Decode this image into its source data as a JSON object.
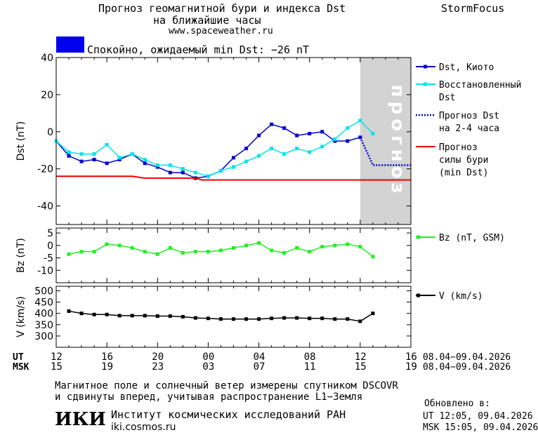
{
  "header": {
    "title_line1": "Прогноз геомагнитной бури и индекса Dst",
    "title_line2": "на ближайшие часы",
    "url": "www.spaceweather.ru",
    "brand": "StormFocus"
  },
  "status": {
    "text": "Спокойно, ожидаемый min Dst: −26 nT",
    "color": "#0000ee"
  },
  "forecast_zone_label": "прогноз",
  "time_axis": {
    "ut_label": "UT",
    "msk_label": "MSK",
    "ut_ticks": [
      "12",
      "16",
      "20",
      "00",
      "04",
      "08",
      "12",
      "16"
    ],
    "msk_ticks": [
      "15",
      "19",
      "23",
      "03",
      "07",
      "11",
      "15",
      "19"
    ],
    "ut_range": "08.04−09.04.2026",
    "msk_range": "08.04−09.04.2026"
  },
  "footer": {
    "note_line1": "Магнитное поле и солнечный ветер измерены спутником DSCOVR",
    "note_line2": "и сдвинуты вперед, учитывая распространение L1−Земля",
    "institute": "Институт космических исследований РАН",
    "institute_url": "iki.cosmos.ru",
    "logo_text": "ИКИ",
    "updated_label": "Обновлено в:",
    "updated_ut": "UT  12:05, 09.04.2026",
    "updated_msk": "MSK 15:05, 09.04.2026"
  },
  "chart_data": [
    {
      "type": "line",
      "ylabel": "Dst (nT)",
      "ylim": [
        -50,
        40
      ],
      "yticks": [
        -40,
        -20,
        0,
        20,
        40
      ],
      "x_unit": "hours since 12 UT 08.04.2026",
      "xlim": [
        0,
        28
      ],
      "forecast_shade_start": 24,
      "series": [
        {
          "name": "Dst, Киото",
          "color": "#0000cc",
          "x": [
            0,
            1,
            2,
            3,
            4,
            5,
            6,
            7,
            8,
            9,
            10,
            11,
            12,
            13,
            14,
            15,
            16,
            17,
            18,
            19,
            20,
            21,
            22,
            23,
            24
          ],
          "values": [
            -5,
            -13,
            -16,
            -15,
            -17,
            -15,
            -12,
            -17,
            -19,
            -22,
            -22,
            -25,
            -24,
            -21,
            -14,
            -9,
            -2,
            4,
            2,
            -2,
            -1,
            0,
            -5,
            -5,
            -3
          ]
        },
        {
          "name": "Восстановленный Dst",
          "color": "#00e5ee",
          "x": [
            0,
            1,
            2,
            3,
            4,
            5,
            6,
            7,
            8,
            9,
            10,
            11,
            12,
            13,
            14,
            15,
            16,
            17,
            18,
            19,
            20,
            21,
            22,
            23,
            24,
            25
          ],
          "values": [
            -5,
            -11,
            -12,
            -12,
            -7,
            -14,
            -12,
            -15,
            -18,
            -18,
            -20,
            -22,
            -24,
            -21,
            -19,
            -16,
            -13,
            -9,
            -12,
            -9,
            -11,
            -8,
            -4,
            2,
            6,
            -1
          ]
        },
        {
          "name": "Прогноз Dst на 2-4 часа",
          "color": "#0000cc",
          "style": "dotted",
          "x": [
            24,
            25,
            26,
            27,
            28
          ],
          "values": [
            -3,
            -18,
            -18,
            -18,
            -18
          ]
        },
        {
          "name": "Прогноз силы бури (min Dst)",
          "color": "#ee0000",
          "x": [
            0,
            6,
            7,
            11,
            11.5,
            28
          ],
          "values": [
            -24,
            -24,
            -25,
            -25,
            -26,
            -26
          ]
        }
      ]
    },
    {
      "type": "line",
      "ylabel": "Bz (nT)",
      "ylim": [
        -15,
        7
      ],
      "yticks": [
        -10,
        -5,
        0,
        5
      ],
      "xlim": [
        0,
        28
      ],
      "series": [
        {
          "name": "Bz (nT, GSM)",
          "color": "#22ee22",
          "x": [
            1,
            2,
            3,
            4,
            5,
            6,
            7,
            8,
            9,
            10,
            11,
            12,
            13,
            14,
            15,
            16,
            17,
            18,
            19,
            20,
            21,
            22,
            23,
            24,
            25
          ],
          "values": [
            -3.5,
            -2.5,
            -2.5,
            0.5,
            0,
            -1,
            -2.5,
            -3.5,
            -1,
            -3,
            -2.5,
            -2.5,
            -2,
            -1,
            0,
            1,
            -2,
            -3,
            -1,
            -2.5,
            -0.5,
            0,
            0.5,
            -0.5,
            -4.5
          ]
        }
      ]
    },
    {
      "type": "line",
      "ylabel": "V (km/s)",
      "ylim": [
        250,
        520
      ],
      "yticks": [
        300,
        350,
        400,
        450,
        500
      ],
      "xlim": [
        0,
        28
      ],
      "series": [
        {
          "name": "V (km/s)",
          "color": "#000000",
          "x": [
            1,
            2,
            3,
            4,
            5,
            6,
            7,
            8,
            9,
            10,
            11,
            12,
            13,
            14,
            15,
            16,
            17,
            18,
            19,
            20,
            21,
            22,
            23,
            24,
            25
          ],
          "values": [
            410,
            400,
            395,
            395,
            390,
            390,
            390,
            388,
            388,
            385,
            380,
            378,
            375,
            375,
            375,
            375,
            378,
            380,
            380,
            378,
            378,
            375,
            375,
            365,
            400
          ]
        }
      ]
    }
  ]
}
